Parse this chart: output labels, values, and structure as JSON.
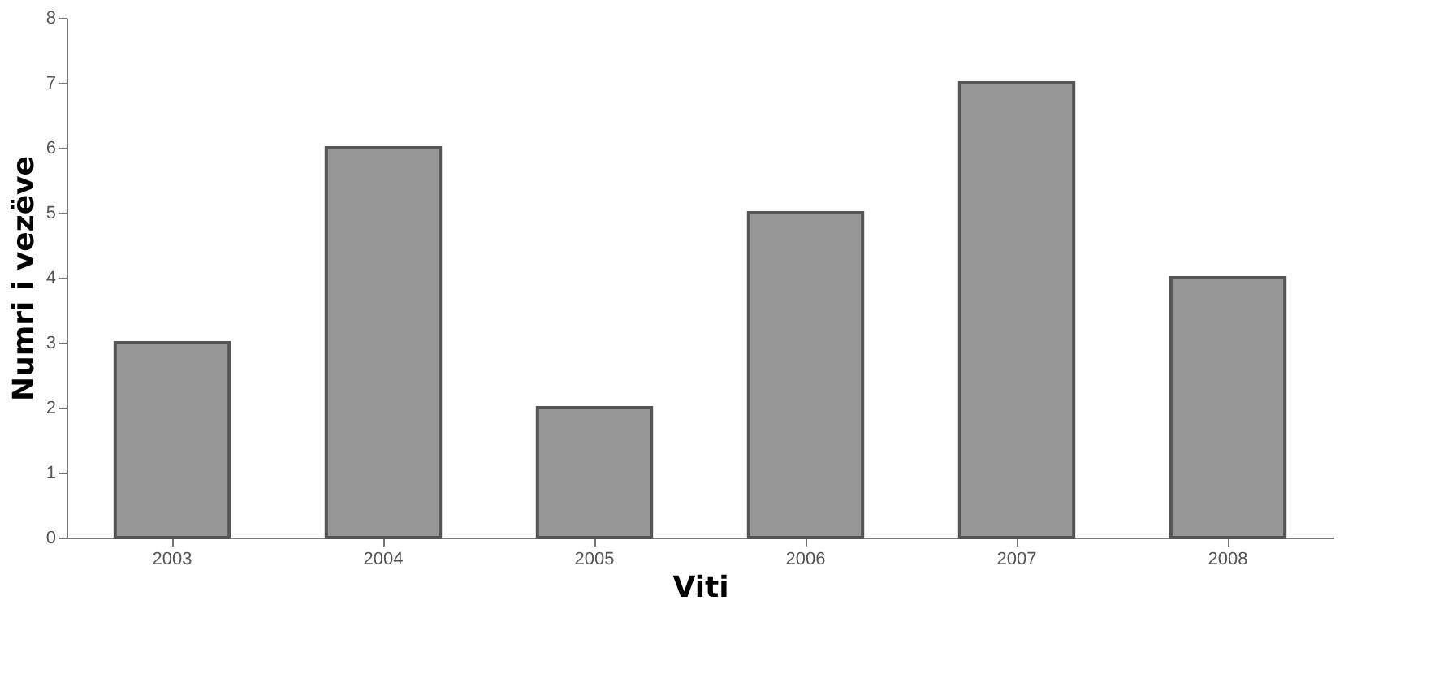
{
  "chart_data": {
    "type": "bar",
    "xlabel": "Viti",
    "ylabel": "Numri i vezëve",
    "categories": [
      "2003",
      "2004",
      "2005",
      "2006",
      "2007",
      "2008"
    ],
    "values": [
      3,
      6,
      2,
      5,
      7,
      4
    ],
    "color": "#969696",
    "ylim": [
      0,
      8
    ],
    "yticks": [
      0,
      1,
      2,
      3,
      4,
      5,
      6,
      7,
      8
    ],
    "grid": false
  }
}
